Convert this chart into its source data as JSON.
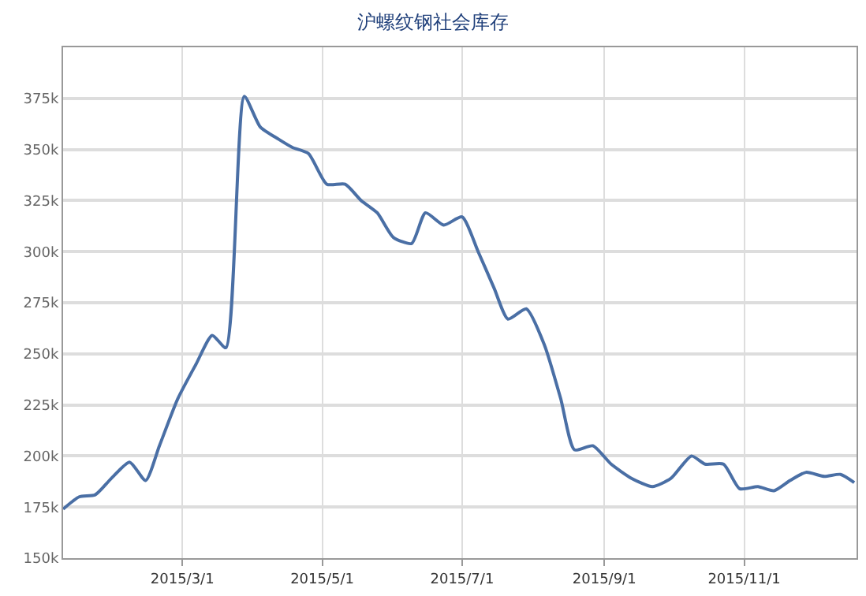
{
  "chart_data": {
    "type": "line",
    "title": "沪螺纹钢社会库存",
    "color": "#4a6fa5",
    "grid": true,
    "marker": "none",
    "line_style": "solid",
    "legend": false,
    "x": [
      "2015-01-08",
      "2015-01-15",
      "2015-01-22",
      "2015-01-29",
      "2015-02-06",
      "2015-02-13",
      "2015-02-19",
      "2015-02-27",
      "2015-03-07",
      "2015-03-14",
      "2015-03-20",
      "2015-03-28",
      "2015-04-04",
      "2015-04-12",
      "2015-04-18",
      "2015-04-25",
      "2015-05-03",
      "2015-05-11",
      "2015-05-18",
      "2015-05-25",
      "2015-06-01",
      "2015-06-09",
      "2015-06-15",
      "2015-06-23",
      "2015-07-01",
      "2015-07-08",
      "2015-07-15",
      "2015-07-21",
      "2015-07-29",
      "2015-08-06",
      "2015-08-13",
      "2015-08-19",
      "2015-08-27",
      "2015-09-04",
      "2015-09-13",
      "2015-09-22",
      "2015-09-30",
      "2015-10-09",
      "2015-10-15",
      "2015-10-23",
      "2015-10-30",
      "2015-11-07",
      "2015-11-14",
      "2015-11-21",
      "2015-11-28",
      "2015-12-06",
      "2015-12-13",
      "2015-12-19"
    ],
    "values": [
      174000,
      180000,
      181000,
      189000,
      197000,
      188000,
      205000,
      228000,
      245000,
      259000,
      253000,
      376000,
      361000,
      355000,
      351000,
      348000,
      333000,
      333000,
      325000,
      319000,
      307000,
      304000,
      319000,
      313000,
      317000,
      300000,
      282000,
      267000,
      272000,
      254000,
      228000,
      203000,
      205000,
      196000,
      189000,
      185000,
      189000,
      200000,
      196000,
      196000,
      184000,
      185000,
      183000,
      188000,
      192000,
      190000,
      191000,
      187000
    ],
    "xlim": [
      "2015-01-08",
      "2015-12-20"
    ],
    "xticks": [
      {
        "value": "2015-03-01",
        "label": "2015/3/1"
      },
      {
        "value": "2015-05-01",
        "label": "2015/5/1"
      },
      {
        "value": "2015-07-01",
        "label": "2015/7/1"
      },
      {
        "value": "2015-09-01",
        "label": "2015/9/1"
      },
      {
        "value": "2015-11-01",
        "label": "2015/11/1"
      }
    ],
    "ylim": [
      150000,
      400000
    ],
    "yticks": [
      {
        "value": 150000,
        "label": "150k"
      },
      {
        "value": 175000,
        "label": "175k"
      },
      {
        "value": 200000,
        "label": "200k"
      },
      {
        "value": 225000,
        "label": "225k"
      },
      {
        "value": 250000,
        "label": "250k"
      },
      {
        "value": 275000,
        "label": "275k"
      },
      {
        "value": 300000,
        "label": "300k"
      },
      {
        "value": 325000,
        "label": "325k"
      },
      {
        "value": 350000,
        "label": "350k"
      },
      {
        "value": 375000,
        "label": "375k"
      }
    ]
  }
}
